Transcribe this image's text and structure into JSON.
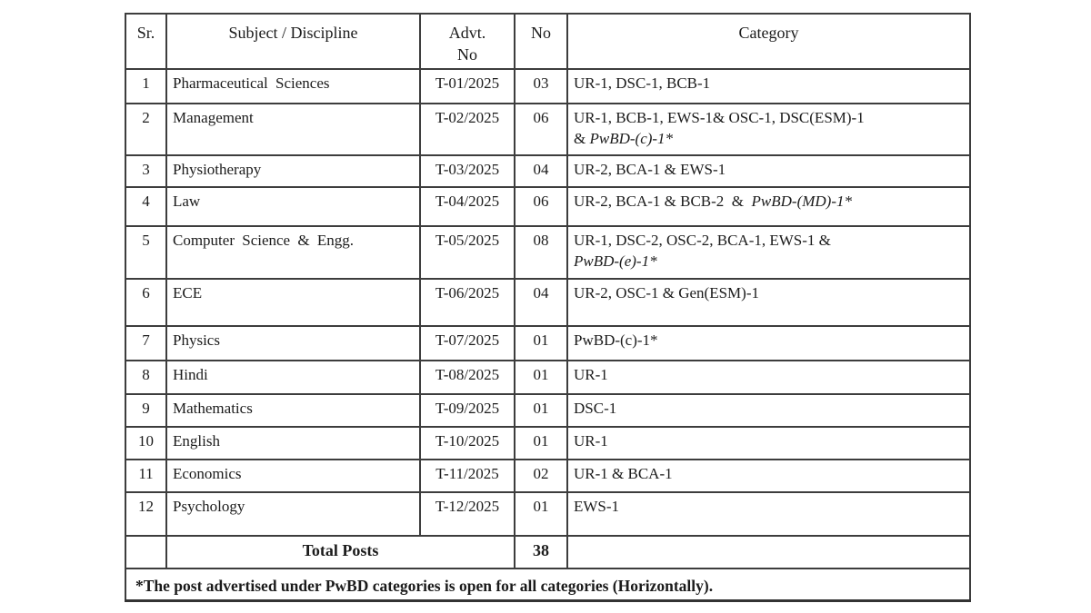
{
  "table": {
    "headers": {
      "sr": "Sr.",
      "subject": "Subject / Discipline",
      "advt_line1": "Advt.",
      "advt_line2": "No",
      "no": "No",
      "category": "Category"
    },
    "rows": [
      {
        "sr": "1",
        "subject": "Pharmaceutical Sciences",
        "advt": "T-01/2025",
        "no": "03",
        "category": [
          [
            {
              "t": "UR-1, DSC-1, BCB-1"
            }
          ]
        ]
      },
      {
        "sr": "2",
        "subject": "Management",
        "advt": "T-02/2025",
        "no": "06",
        "category": [
          [
            {
              "t": "UR-1, BCB-1, EWS-1& OSC-1, DSC(ESM)-1"
            }
          ],
          [
            {
              "t": "& "
            },
            {
              "t": "PwBD-(c)-1*",
              "i": true
            }
          ]
        ]
      },
      {
        "sr": "3",
        "subject": "Physiotherapy",
        "advt": "T-03/2025",
        "no": "04",
        "category": [
          [
            {
              "t": "UR-2, BCA-1 & EWS-1"
            }
          ]
        ]
      },
      {
        "sr": "4",
        "subject": "Law",
        "advt": "T-04/2025",
        "no": "06",
        "category": [
          [
            {
              "t": "UR-2, BCA-1 & BCB-2  &  "
            },
            {
              "t": "PwBD-(MD)-1*",
              "i": true
            }
          ]
        ]
      },
      {
        "sr": "5",
        "subject": "Computer Science & Engg.",
        "advt": "T-05/2025",
        "no": "08",
        "category": [
          [
            {
              "t": "UR-1, DSC-2, OSC-2, BCA-1, EWS-1 &"
            }
          ],
          [
            {
              "t": "PwBD-(e)-1*",
              "i": true
            }
          ]
        ]
      },
      {
        "sr": "6",
        "subject": "ECE",
        "advt": "T-06/2025",
        "no": "04",
        "category": [
          [
            {
              "t": "UR-2, OSC-1 & Gen(ESM)-1"
            }
          ]
        ]
      },
      {
        "sr": "7",
        "subject": "Physics",
        "advt": "T-07/2025",
        "no": "01",
        "category": [
          [
            {
              "t": "PwBD-(c)-1*"
            }
          ]
        ]
      },
      {
        "sr": "8",
        "subject": "Hindi",
        "advt": "T-08/2025",
        "no": "01",
        "category": [
          [
            {
              "t": "UR-1"
            }
          ]
        ]
      },
      {
        "sr": "9",
        "subject": "Mathematics",
        "advt": "T-09/2025",
        "no": "01",
        "category": [
          [
            {
              "t": "DSC-1"
            }
          ]
        ]
      },
      {
        "sr": "10",
        "subject": "English",
        "advt": "T-10/2025",
        "no": "01",
        "category": [
          [
            {
              "t": "UR-1"
            }
          ]
        ]
      },
      {
        "sr": "11",
        "subject": "Economics",
        "advt": "T-11/2025",
        "no": "02",
        "category": [
          [
            {
              "t": "UR-1 & BCA-1"
            }
          ]
        ]
      },
      {
        "sr": "12",
        "subject": "Psychology",
        "advt": "T-12/2025",
        "no": "01",
        "category": [
          [
            {
              "t": "EWS-1"
            }
          ]
        ]
      }
    ],
    "total_row": {
      "label": "Total Posts",
      "value": "38"
    },
    "footnote": "*The post advertised under PwBD categories is open for all categories (Horizontally)."
  }
}
